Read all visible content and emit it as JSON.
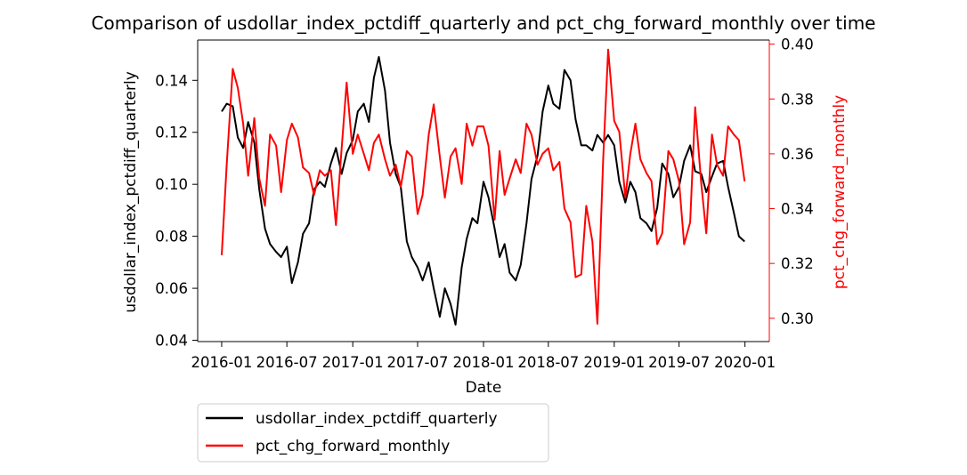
{
  "chart_data": {
    "type": "line",
    "title": "Comparison of usdollar_index_pctdiff_quarterly and pct_chg_forward_monthly over time",
    "xlabel": "Date",
    "ylabel_left": "usdollar_index_pctdiff_quarterly",
    "ylabel_right": "pct_chg_forward_monthly",
    "x_ticks": [
      "2016-01",
      "2016-07",
      "2017-01",
      "2017-07",
      "2018-01",
      "2018-07",
      "2019-01",
      "2019-07",
      "2020-01"
    ],
    "y_left_ticks": [
      "0.04",
      "0.06",
      "0.08",
      "0.10",
      "0.12",
      "0.14"
    ],
    "y_right_ticks": [
      "0.30",
      "0.32",
      "0.34",
      "0.36",
      "0.38",
      "0.40"
    ],
    "xlim": [
      "2015-10-26",
      "2020-03-09"
    ],
    "ylim_left": [
      0.0395,
      0.1555
    ],
    "ylim_right": [
      0.2915,
      0.4015
    ],
    "grid": false,
    "legend_position": "below",
    "series": [
      {
        "name": "usdollar_index_pctdiff_quarterly",
        "color": "#000000",
        "axis": "left",
        "points": [
          [
            "2016-01-01",
            0.128
          ],
          [
            "2016-01-15",
            0.131
          ],
          [
            "2016-02-01",
            0.13
          ],
          [
            "2016-02-15",
            0.118
          ],
          [
            "2016-03-01",
            0.114
          ],
          [
            "2016-03-15",
            0.124
          ],
          [
            "2016-04-01",
            0.116
          ],
          [
            "2016-04-15",
            0.098
          ],
          [
            "2016-05-01",
            0.083
          ],
          [
            "2016-05-15",
            0.077
          ],
          [
            "2016-06-01",
            0.074
          ],
          [
            "2016-06-15",
            0.072
          ],
          [
            "2016-07-01",
            0.076
          ],
          [
            "2016-07-15",
            0.062
          ],
          [
            "2016-08-01",
            0.07
          ],
          [
            "2016-08-15",
            0.081
          ],
          [
            "2016-09-01",
            0.085
          ],
          [
            "2016-09-15",
            0.098
          ],
          [
            "2016-10-01",
            0.101
          ],
          [
            "2016-10-15",
            0.099
          ],
          [
            "2016-11-01",
            0.108
          ],
          [
            "2016-11-15",
            0.114
          ],
          [
            "2016-12-01",
            0.104
          ],
          [
            "2016-12-15",
            0.112
          ],
          [
            "2017-01-01",
            0.117
          ],
          [
            "2017-01-15",
            0.128
          ],
          [
            "2017-02-01",
            0.131
          ],
          [
            "2017-02-15",
            0.124
          ],
          [
            "2017-03-01",
            0.141
          ],
          [
            "2017-03-15",
            0.149
          ],
          [
            "2017-04-01",
            0.136
          ],
          [
            "2017-04-15",
            0.116
          ],
          [
            "2017-05-01",
            0.104
          ],
          [
            "2017-05-15",
            0.099
          ],
          [
            "2017-06-01",
            0.078
          ],
          [
            "2017-06-15",
            0.072
          ],
          [
            "2017-07-01",
            0.068
          ],
          [
            "2017-07-15",
            0.063
          ],
          [
            "2017-08-01",
            0.07
          ],
          [
            "2017-08-15",
            0.06
          ],
          [
            "2017-09-01",
            0.049
          ],
          [
            "2017-09-15",
            0.06
          ],
          [
            "2017-10-01",
            0.054
          ],
          [
            "2017-10-15",
            0.046
          ],
          [
            "2017-11-01",
            0.068
          ],
          [
            "2017-11-15",
            0.079
          ],
          [
            "2017-12-01",
            0.087
          ],
          [
            "2017-12-15",
            0.085
          ],
          [
            "2018-01-01",
            0.101
          ],
          [
            "2018-01-15",
            0.095
          ],
          [
            "2018-02-01",
            0.083
          ],
          [
            "2018-02-15",
            0.072
          ],
          [
            "2018-03-01",
            0.077
          ],
          [
            "2018-03-15",
            0.066
          ],
          [
            "2018-04-01",
            0.063
          ],
          [
            "2018-04-15",
            0.069
          ],
          [
            "2018-05-01",
            0.085
          ],
          [
            "2018-05-15",
            0.102
          ],
          [
            "2018-06-01",
            0.111
          ],
          [
            "2018-06-15",
            0.128
          ],
          [
            "2018-07-01",
            0.138
          ],
          [
            "2018-07-15",
            0.131
          ],
          [
            "2018-08-01",
            0.129
          ],
          [
            "2018-08-15",
            0.144
          ],
          [
            "2018-09-01",
            0.14
          ],
          [
            "2018-09-15",
            0.125
          ],
          [
            "2018-10-01",
            0.115
          ],
          [
            "2018-10-15",
            0.115
          ],
          [
            "2018-11-01",
            0.113
          ],
          [
            "2018-11-15",
            0.119
          ],
          [
            "2018-12-01",
            0.116
          ],
          [
            "2018-12-15",
            0.119
          ],
          [
            "2019-01-01",
            0.115
          ],
          [
            "2019-01-15",
            0.101
          ],
          [
            "2019-02-01",
            0.093
          ],
          [
            "2019-02-15",
            0.101
          ],
          [
            "2019-03-01",
            0.097
          ],
          [
            "2019-03-15",
            0.087
          ],
          [
            "2019-04-01",
            0.085
          ],
          [
            "2019-04-15",
            0.082
          ],
          [
            "2019-05-01",
            0.091
          ],
          [
            "2019-05-15",
            0.108
          ],
          [
            "2019-06-01",
            0.104
          ],
          [
            "2019-06-15",
            0.095
          ],
          [
            "2019-07-01",
            0.099
          ],
          [
            "2019-07-15",
            0.109
          ],
          [
            "2019-08-01",
            0.115
          ],
          [
            "2019-08-15",
            0.105
          ],
          [
            "2019-09-01",
            0.104
          ],
          [
            "2019-09-15",
            0.097
          ],
          [
            "2019-10-01",
            0.103
          ],
          [
            "2019-10-15",
            0.108
          ],
          [
            "2019-11-01",
            0.109
          ],
          [
            "2019-11-15",
            0.099
          ],
          [
            "2019-12-01",
            0.089
          ],
          [
            "2019-12-15",
            0.08
          ],
          [
            "2019-12-31",
            0.078
          ]
        ]
      },
      {
        "name": "pct_chg_forward_monthly",
        "color": "#ff0000",
        "axis": "right",
        "points": [
          [
            "2016-01-01",
            0.323
          ],
          [
            "2016-01-15",
            0.356
          ],
          [
            "2016-02-01",
            0.391
          ],
          [
            "2016-02-15",
            0.384
          ],
          [
            "2016-03-01",
            0.371
          ],
          [
            "2016-03-15",
            0.352
          ],
          [
            "2016-04-01",
            0.373
          ],
          [
            "2016-04-15",
            0.351
          ],
          [
            "2016-05-01",
            0.341
          ],
          [
            "2016-05-15",
            0.367
          ],
          [
            "2016-06-01",
            0.363
          ],
          [
            "2016-06-15",
            0.346
          ],
          [
            "2016-07-01",
            0.365
          ],
          [
            "2016-07-15",
            0.371
          ],
          [
            "2016-08-01",
            0.366
          ],
          [
            "2016-08-15",
            0.355
          ],
          [
            "2016-09-01",
            0.353
          ],
          [
            "2016-09-15",
            0.345
          ],
          [
            "2016-10-01",
            0.354
          ],
          [
            "2016-10-15",
            0.352
          ],
          [
            "2016-11-01",
            0.354
          ],
          [
            "2016-11-15",
            0.334
          ],
          [
            "2016-12-01",
            0.362
          ],
          [
            "2016-12-15",
            0.386
          ],
          [
            "2017-01-01",
            0.36
          ],
          [
            "2017-01-15",
            0.367
          ],
          [
            "2017-02-01",
            0.36
          ],
          [
            "2017-02-15",
            0.354
          ],
          [
            "2017-03-01",
            0.364
          ],
          [
            "2017-03-15",
            0.367
          ],
          [
            "2017-04-01",
            0.358
          ],
          [
            "2017-04-15",
            0.352
          ],
          [
            "2017-05-01",
            0.356
          ],
          [
            "2017-05-15",
            0.348
          ],
          [
            "2017-06-01",
            0.361
          ],
          [
            "2017-06-15",
            0.359
          ],
          [
            "2017-07-01",
            0.338
          ],
          [
            "2017-07-15",
            0.345
          ],
          [
            "2017-08-01",
            0.367
          ],
          [
            "2017-08-15",
            0.378
          ],
          [
            "2017-09-01",
            0.359
          ],
          [
            "2017-09-15",
            0.344
          ],
          [
            "2017-10-01",
            0.359
          ],
          [
            "2017-10-15",
            0.362
          ],
          [
            "2017-11-01",
            0.349
          ],
          [
            "2017-11-15",
            0.371
          ],
          [
            "2017-12-01",
            0.363
          ],
          [
            "2017-12-15",
            0.37
          ],
          [
            "2018-01-01",
            0.37
          ],
          [
            "2018-01-15",
            0.363
          ],
          [
            "2018-02-01",
            0.336
          ],
          [
            "2018-02-15",
            0.361
          ],
          [
            "2018-03-01",
            0.345
          ],
          [
            "2018-03-15",
            0.351
          ],
          [
            "2018-04-01",
            0.358
          ],
          [
            "2018-04-15",
            0.353
          ],
          [
            "2018-05-01",
            0.371
          ],
          [
            "2018-05-15",
            0.367
          ],
          [
            "2018-06-01",
            0.356
          ],
          [
            "2018-06-15",
            0.36
          ],
          [
            "2018-07-01",
            0.362
          ],
          [
            "2018-07-15",
            0.354
          ],
          [
            "2018-08-01",
            0.357
          ],
          [
            "2018-08-15",
            0.34
          ],
          [
            "2018-09-01",
            0.335
          ],
          [
            "2018-09-15",
            0.315
          ],
          [
            "2018-10-01",
            0.316
          ],
          [
            "2018-10-15",
            0.341
          ],
          [
            "2018-11-01",
            0.328
          ],
          [
            "2018-11-15",
            0.298
          ],
          [
            "2018-12-01",
            0.358
          ],
          [
            "2018-12-15",
            0.398
          ],
          [
            "2019-01-01",
            0.372
          ],
          [
            "2019-01-15",
            0.368
          ],
          [
            "2019-02-01",
            0.344
          ],
          [
            "2019-02-15",
            0.36
          ],
          [
            "2019-03-01",
            0.371
          ],
          [
            "2019-03-15",
            0.358
          ],
          [
            "2019-04-01",
            0.353
          ],
          [
            "2019-04-15",
            0.35
          ],
          [
            "2019-05-01",
            0.327
          ],
          [
            "2019-05-15",
            0.331
          ],
          [
            "2019-06-01",
            0.361
          ],
          [
            "2019-06-15",
            0.358
          ],
          [
            "2019-07-01",
            0.35
          ],
          [
            "2019-07-15",
            0.327
          ],
          [
            "2019-08-01",
            0.335
          ],
          [
            "2019-08-15",
            0.377
          ],
          [
            "2019-09-01",
            0.349
          ],
          [
            "2019-09-15",
            0.331
          ],
          [
            "2019-10-01",
            0.367
          ],
          [
            "2019-10-15",
            0.356
          ],
          [
            "2019-11-01",
            0.352
          ],
          [
            "2019-11-15",
            0.37
          ],
          [
            "2019-12-01",
            0.367
          ],
          [
            "2019-12-15",
            0.365
          ],
          [
            "2019-12-31",
            0.35
          ]
        ]
      }
    ]
  }
}
